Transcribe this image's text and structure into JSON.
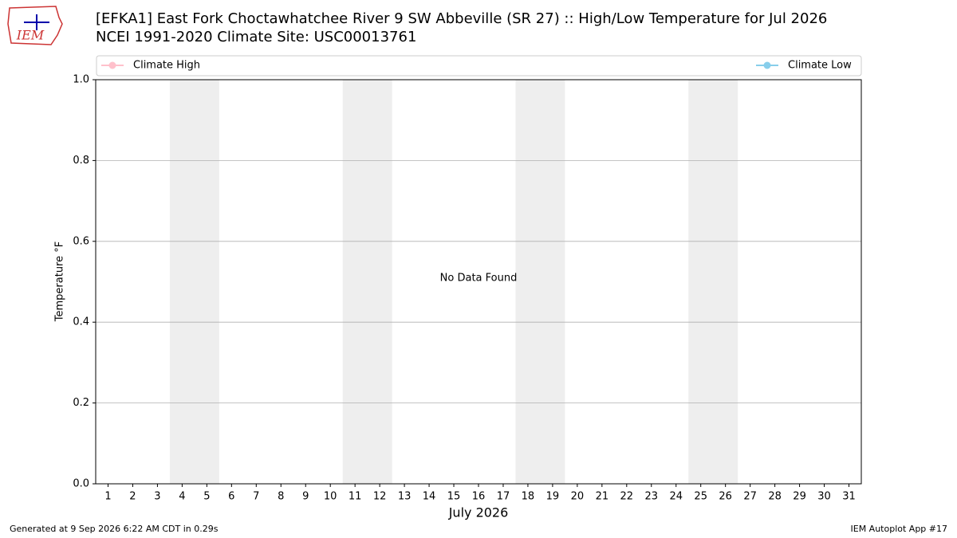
{
  "chart_data": {
    "type": "line",
    "title": "[EFKA1] East Fork Choctawhatchee River 9 SW Abbeville (SR 27) :: High/Low Temperature for Jul 2026",
    "subtitle": "NCEI 1991-2020 Climate Site: USC00013761",
    "xlabel": "July 2026",
    "ylabel": "Temperature °F",
    "annotation": "No Data Found",
    "series": [
      {
        "name": "Climate High",
        "color": "#ffc0cb",
        "values": []
      },
      {
        "name": "Climate Low",
        "color": "#87ceeb",
        "values": []
      }
    ],
    "xlim": [
      0.5,
      31.5
    ],
    "xticks": [
      1,
      2,
      3,
      4,
      5,
      6,
      7,
      8,
      9,
      10,
      11,
      12,
      13,
      14,
      15,
      16,
      17,
      18,
      19,
      20,
      21,
      22,
      23,
      24,
      25,
      26,
      27,
      28,
      29,
      30,
      31
    ],
    "ylim": [
      0,
      1
    ],
    "yticks": [
      {
        "value": 0,
        "label": "0.0"
      },
      0.2,
      0.4,
      0.6,
      0.8,
      {
        "value": 1,
        "label": "1.0"
      }
    ],
    "shaded_ranges": [
      [
        3.5,
        5.5
      ],
      [
        10.5,
        12.5
      ],
      [
        17.5,
        19.5
      ],
      [
        24.5,
        26.5
      ]
    ],
    "shade_color": "#eeeeee",
    "grid": true,
    "legend": "top"
  },
  "logo_text": "IEM",
  "footer_left": "Generated at 9 Sep 2026 6:22 AM CDT in 0.29s",
  "footer_right": "IEM Autoplot App #17"
}
